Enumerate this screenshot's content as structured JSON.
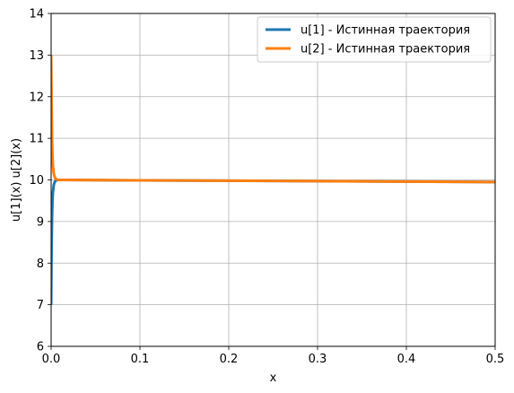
{
  "chart_data": {
    "type": "line",
    "title": "",
    "xlabel": "x",
    "ylabel": "u[1](x)   u[2](x)",
    "xlim": [
      0,
      0.5
    ],
    "ylim": [
      6,
      14
    ],
    "x_ticks": [
      "0.0",
      "0.1",
      "0.2",
      "0.3",
      "0.4",
      "0.5"
    ],
    "y_ticks": [
      "6",
      "7",
      "8",
      "9",
      "10",
      "11",
      "12",
      "13",
      "14"
    ],
    "grid": true,
    "legend_position": "top-right",
    "series": [
      {
        "name": "u[1] - Истинная траектория",
        "color": "#1f77b4",
        "x": [
          0,
          0.0005,
          0.001,
          0.0015,
          0.002,
          0.003,
          0.004,
          0.005,
          0.006,
          0.008,
          0.01,
          0.05,
          0.1,
          0.2,
          0.3,
          0.4,
          0.5
        ],
        "y": [
          7.0,
          8.4,
          9.1,
          9.5,
          9.7,
          9.88,
          9.95,
          9.98,
          9.99,
          10.0,
          10.0,
          9.995,
          9.99,
          9.98,
          9.97,
          9.96,
          9.95
        ]
      },
      {
        "name": "u[2] - Истинная траектория",
        "color": "#ff7f0e",
        "x": [
          0,
          0.0005,
          0.001,
          0.0015,
          0.002,
          0.003,
          0.004,
          0.005,
          0.006,
          0.008,
          0.01,
          0.05,
          0.1,
          0.2,
          0.3,
          0.4,
          0.5
        ],
        "y": [
          13.0,
          11.9,
          11.0,
          10.6,
          10.35,
          10.15,
          10.07,
          10.03,
          10.015,
          10.0,
          10.0,
          9.995,
          9.99,
          9.98,
          9.97,
          9.96,
          9.95
        ]
      }
    ]
  }
}
